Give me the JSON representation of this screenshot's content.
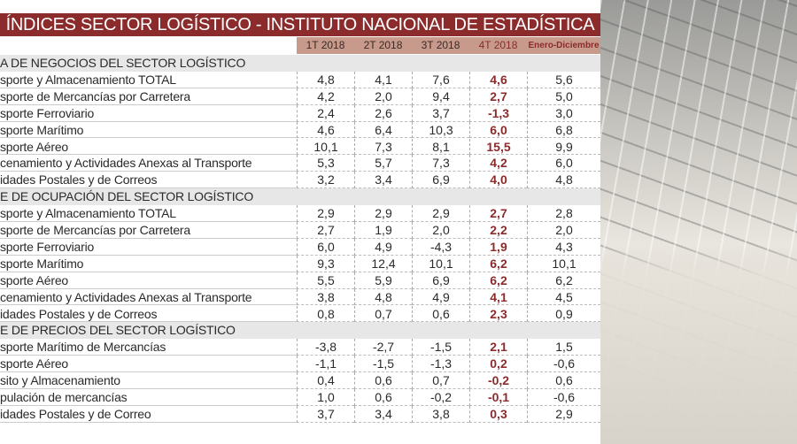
{
  "title": "ÍNDICES SECTOR LOGÍSTICO - INSTITUTO NACIONAL DE ESTADÍSTICA",
  "columns": [
    "1T 2018",
    "2T 2018",
    "3T 2018",
    "4T 2018",
    "Enero-Diciembre"
  ],
  "colors": {
    "title_bg": "#8b2b2c",
    "header_bg": "#c89a8b",
    "highlight": "#8b2b2c",
    "section_bg": "#e7e7e7"
  },
  "sections": [
    {
      "title": "A DE NEGOCIOS DEL SECTOR LOGÍSTICO",
      "rows": [
        {
          "label": "sporte y Almacenamiento TOTAL",
          "values": [
            "4,8",
            "4,1",
            "7,6",
            "4,6",
            "5,6"
          ]
        },
        {
          "label": "sporte de Mercancías por Carretera",
          "values": [
            "4,2",
            "2,0",
            "9,4",
            "2,7",
            "5,0"
          ]
        },
        {
          "label": "sporte Ferroviario",
          "values": [
            "2,4",
            "2,6",
            "3,7",
            "-1,3",
            "3,0"
          ]
        },
        {
          "label": "sporte Marítimo",
          "values": [
            "4,6",
            "6,4",
            "10,3",
            "6,0",
            "6,8"
          ]
        },
        {
          "label": "sporte Aéreo",
          "values": [
            "10,1",
            "7,3",
            "8,1",
            "15,5",
            "9,9"
          ]
        },
        {
          "label": "cenamiento y Actividades Anexas al Transporte",
          "values": [
            "5,3",
            "5,7",
            "7,3",
            "4,2",
            "6,0"
          ]
        },
        {
          "label": "idades Postales y de Correos",
          "values": [
            "3,2",
            "3,4",
            "6,9",
            "4,0",
            "4,8"
          ]
        }
      ]
    },
    {
      "title": "E DE OCUPACIÓN DEL SECTOR LOGÍSTICO",
      "rows": [
        {
          "label": "sporte y Almacenamiento TOTAL",
          "values": [
            "2,9",
            "2,9",
            "2,9",
            "2,7",
            "2,8"
          ]
        },
        {
          "label": "sporte de Mercancías por Carretera",
          "values": [
            "2,7",
            "1,9",
            "2,0",
            "2,2",
            "2,0"
          ]
        },
        {
          "label": "sporte Ferroviario",
          "values": [
            "6,0",
            "4,9",
            "-4,3",
            "1,9",
            "4,3"
          ]
        },
        {
          "label": "sporte Marítimo",
          "values": [
            "9,3",
            "12,4",
            "10,1",
            "6,2",
            "10,1"
          ]
        },
        {
          "label": "sporte Aéreo",
          "values": [
            "5,5",
            "5,9",
            "6,9",
            "6,2",
            "6,2"
          ]
        },
        {
          "label": "cenamiento y Actividades Anexas al Transporte",
          "values": [
            "3,8",
            "4,8",
            "4,9",
            "4,1",
            "4,5"
          ]
        },
        {
          "label": "idades Postales y de Correos",
          "values": [
            "0,8",
            "0,7",
            "0,6",
            "2,3",
            "0,9"
          ]
        }
      ]
    },
    {
      "title": "E DE PRECIOS DEL SECTOR LOGÍSTICO",
      "rows": [
        {
          "label": "sporte Marítimo de Mercancías",
          "values": [
            "-3,8",
            "-2,7",
            "-1,5",
            "2,1",
            "1,5"
          ]
        },
        {
          "label": "sporte Aéreo",
          "values": [
            "-1,1",
            "-1,5",
            "-1,3",
            "0,2",
            "-0,6"
          ]
        },
        {
          "label": "sito y Almacenamiento",
          "values": [
            "0,4",
            "0,6",
            "0,7",
            "-0,2",
            "0,6"
          ]
        },
        {
          "label": "pulación de mercancías",
          "values": [
            "1,0",
            "0,6",
            "-0,2",
            "-0,1",
            "-0,6"
          ]
        },
        {
          "label": "idades Postales y de Correo",
          "values": [
            "3,7",
            "3,4",
            "3,8",
            "0,3",
            "2,9"
          ]
        }
      ]
    }
  ]
}
